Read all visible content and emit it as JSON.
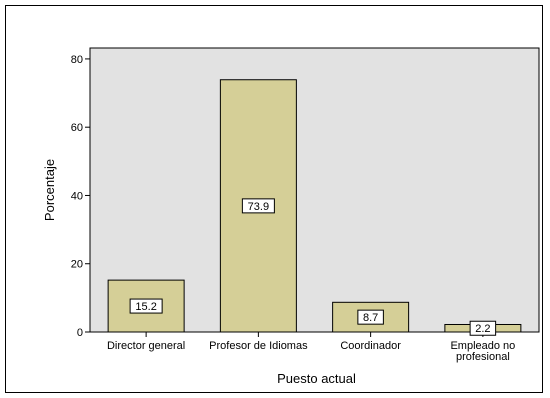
{
  "chart_data": {
    "type": "bar",
    "categories": [
      "Director general",
      "Profesor de Idiomas",
      "Coordinador",
      "Empleado no profesional"
    ],
    "category_lines": [
      [
        "Director general"
      ],
      [
        "Profesor de Idiomas"
      ],
      [
        "Coordinador"
      ],
      [
        "Empleado no",
        "profesional"
      ]
    ],
    "values": [
      15.2,
      73.9,
      8.7,
      2.2
    ],
    "data_labels": [
      "15.2",
      "73.9",
      "8.7",
      "2.2"
    ],
    "xlabel": "Puesto actual",
    "ylabel": "Porcentaje",
    "ylim": [
      0,
      83.2
    ],
    "yticks": [
      0,
      20,
      40,
      60,
      80
    ],
    "grid": false,
    "legend": "none",
    "colors": {
      "bar_fill": "#D5CF97",
      "bar_stroke": "#000000",
      "plot_background": "#E2E2E2",
      "label_box": "#FFFFFF"
    }
  }
}
